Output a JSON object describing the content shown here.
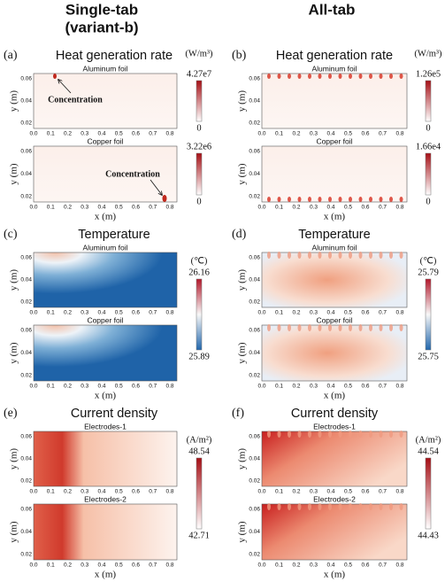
{
  "header": {
    "left": [
      "Single-tab",
      "(variant-b)"
    ],
    "right": "All-tab"
  },
  "axes": {
    "x_label": "x (m)",
    "y_label": "y (m)",
    "x_ticks": [
      "0.0",
      "0.1",
      "0.2",
      "0.3",
      "0.4",
      "0.5",
      "0.6",
      "0.7",
      "0.8"
    ],
    "y_ticks": [
      "0.06",
      "0.04",
      "0.02"
    ]
  },
  "panels": [
    {
      "label": "(a)",
      "title": "Heat generation rate",
      "subplots": [
        "Aluminum foil",
        "Copper foil"
      ],
      "colorbars": [
        {
          "unit": "(W/m³)",
          "max": "4.27e7",
          "min": "0"
        },
        {
          "max": "3.22e6",
          "min": "0"
        }
      ],
      "annotations": [
        "Concentration",
        "Concentration"
      ]
    },
    {
      "label": "(b)",
      "title": "Heat generation rate",
      "subplots": [
        "Aluminum foil",
        "Copper foil"
      ],
      "colorbars": [
        {
          "unit": "(W/m³)",
          "max": "1.26e5",
          "min": "0"
        },
        {
          "max": "1.66e4",
          "min": "0"
        }
      ]
    },
    {
      "label": "(c)",
      "title": "Temperature",
      "subplots": [
        "Aluminum foil",
        "Copper foil"
      ],
      "colorbars": [
        {
          "unit": "(℃)",
          "max": "26.16",
          "min": "25.89"
        }
      ]
    },
    {
      "label": "(d)",
      "title": "Temperature",
      "subplots": [
        "Aluminum foil",
        "Copper foil"
      ],
      "colorbars": [
        {
          "unit": "(℃)",
          "max": "25.79",
          "min": "25.75"
        }
      ]
    },
    {
      "label": "(e)",
      "title": "Current density",
      "subplots": [
        "Electrodes-1",
        "Electrodes-2"
      ],
      "colorbars": [
        {
          "unit": "(A/m²)",
          "max": "48.54",
          "min": "42.71"
        }
      ]
    },
    {
      "label": "(f)",
      "title": "Current density",
      "subplots": [
        "Electrodes-1",
        "Electrodes-2"
      ],
      "colorbars": [
        {
          "unit": "(A/m²)",
          "max": "44.54",
          "min": "44.43"
        }
      ]
    }
  ]
}
